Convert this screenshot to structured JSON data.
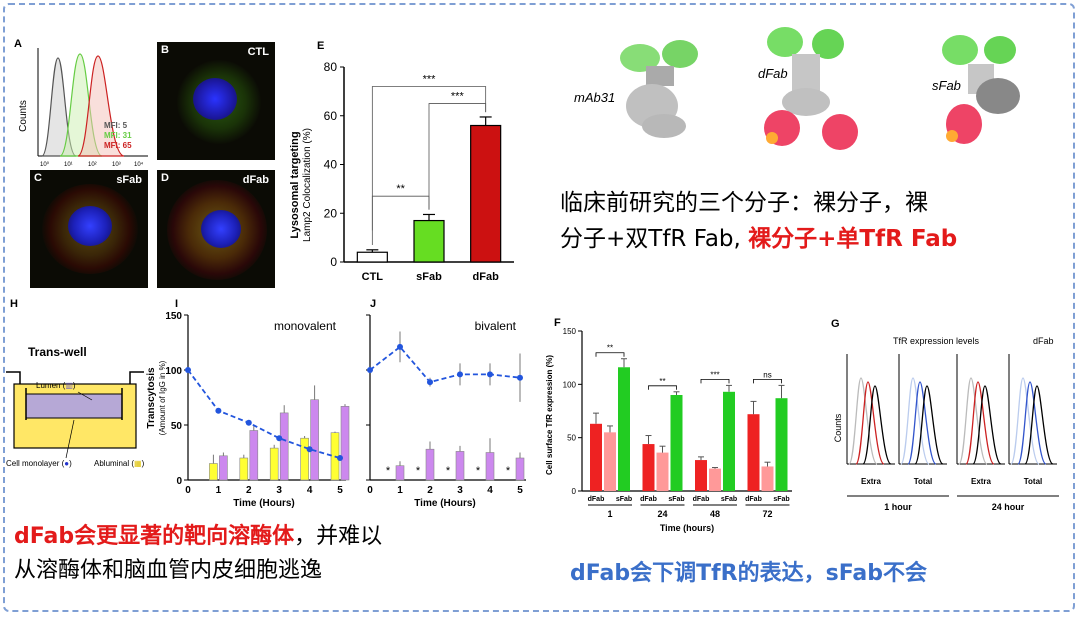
{
  "panel_letters": {
    "A": "A",
    "B": "B",
    "C": "C",
    "D": "D",
    "E": "E",
    "F": "F",
    "G": "G",
    "H": "H",
    "I": "I",
    "J": "J"
  },
  "histogram_a": {
    "ylabel": "Counts",
    "mfi_labels": [
      {
        "text": "MFI: 5",
        "color": "#555555"
      },
      {
        "text": "MFI: 31",
        "color": "#66cc44"
      },
      {
        "text": "MFI: 65",
        "color": "#cc2222"
      }
    ]
  },
  "micrographs": {
    "b": "CTL",
    "c": "sFab",
    "d": "dFab"
  },
  "molecules": {
    "m1": "mAb31",
    "m2": "dFab",
    "m3": "sFab"
  },
  "summary_top": {
    "line1": "临床前研究的三个分子：裸分子，裸",
    "line2_black": "分子+双TfR Fab, ",
    "line2_red": "裸分子+单TfR Fab"
  },
  "summary_bottom_left": {
    "red": "dFab会更显著的靶向溶酶体",
    "black1": "，并难以",
    "line2": "从溶酶体和脑血管内皮细胞逃逸"
  },
  "summary_bottom_right": "dFab会下调TfR的表达，sFab不会",
  "transwell": {
    "title": "Trans-well",
    "lumen": "Lumen (",
    "lumen_end": ")",
    "cell": "Cell monolayer (",
    "cell_end": ")",
    "abluminal": "Abluminal (",
    "abluminal_end": ")"
  },
  "chart_data": [
    {
      "id": "E",
      "type": "bar",
      "ylabel_line1": "Lysosomal targeting",
      "ylabel_line2": "Lamp2 Colocalization (%)",
      "categories": [
        "CTL",
        "sFab",
        "dFab"
      ],
      "values": [
        4,
        17,
        56
      ],
      "errors": [
        1,
        2.5,
        3.5
      ],
      "colors": [
        "#ffffff",
        "#66dd22",
        "#cc1111"
      ],
      "ylim": [
        0,
        80
      ],
      "yticks": [
        0,
        20,
        40,
        60,
        80
      ],
      "significance": [
        {
          "from": 0,
          "to": 1,
          "label": "**"
        },
        {
          "from": 1,
          "to": 2,
          "label": "***"
        },
        {
          "from": 0,
          "to": 2,
          "label": "***"
        }
      ]
    },
    {
      "id": "I",
      "type": "bar+line",
      "title": "monovalent",
      "ylabel_line1": "Transcytosis",
      "ylabel_line2": "(Amount of IgG in %)",
      "xlabel": "Time (Hours)",
      "x": [
        0,
        1,
        2,
        3,
        4,
        5
      ],
      "yticks": [
        0,
        50,
        100,
        150
      ],
      "ylim": [
        0,
        150
      ],
      "line": {
        "x": [
          0,
          1,
          2,
          3,
          4,
          5
        ],
        "y": [
          100,
          63,
          52,
          38,
          28,
          20
        ],
        "color": "#2255dd"
      },
      "bars_yellow": {
        "values": [
          15,
          20,
          29,
          38,
          43
        ],
        "errors": [
          8,
          3,
          3,
          2,
          1
        ],
        "color": "#ffff33"
      },
      "bars_purple": {
        "values": [
          22,
          45,
          61,
          73,
          67
        ],
        "errors": [
          3,
          4,
          7,
          13,
          2
        ],
        "color": "#cc88ee"
      }
    },
    {
      "id": "J",
      "type": "bar+line",
      "title": "bivalent",
      "xlabel": "Time (Hours)",
      "x": [
        0,
        1,
        2,
        3,
        4,
        5
      ],
      "yticks": [
        0,
        50,
        100,
        150
      ],
      "ylim": [
        0,
        150
      ],
      "line": {
        "x": [
          0,
          1,
          2,
          3,
          4,
          5
        ],
        "y": [
          100,
          121,
          89,
          96,
          96,
          93
        ],
        "color": "#2255dd"
      },
      "line_errors": [
        0,
        14,
        4,
        10,
        10,
        22
      ],
      "bars_purple": {
        "values": [
          13,
          28,
          26,
          25,
          20
        ],
        "errors": [
          4,
          7,
          5,
          13,
          5
        ],
        "color": "#cc88ee"
      },
      "star_label": "*"
    },
    {
      "id": "F",
      "type": "bar",
      "ylabel": "Cell surface TfR expression (%)",
      "xlabel": "Time (hours)",
      "groups": [
        "1",
        "24",
        "48",
        "72"
      ],
      "bar_labels": [
        "dFab",
        "sFab"
      ],
      "yticks": [
        0,
        50,
        100,
        150
      ],
      "ylim": [
        0,
        150
      ],
      "series": [
        {
          "name": "red",
          "values": [
            63,
            44,
            29,
            72
          ],
          "errors": [
            10,
            8,
            3,
            12
          ],
          "color": "#ee2222"
        },
        {
          "name": "pink",
          "values": [
            55,
            36,
            21,
            23
          ],
          "errors": [
            6,
            6,
            1,
            4
          ],
          "color": "#ff9999"
        },
        {
          "name": "green",
          "values": [
            116,
            90,
            93,
            87
          ],
          "errors": [
            8,
            3,
            6,
            12
          ],
          "color": "#22cc22"
        }
      ],
      "significance": [
        "**",
        "**",
        "***",
        "ns"
      ]
    },
    {
      "id": "G",
      "type": "histogram",
      "title": "TfR expression levels",
      "corner": "dFab",
      "ylabel": "Counts",
      "xlabels": [
        "Extra",
        "Total",
        "Extra",
        "Total"
      ],
      "timepoints": [
        "1 hour",
        "24 hour"
      ]
    }
  ]
}
